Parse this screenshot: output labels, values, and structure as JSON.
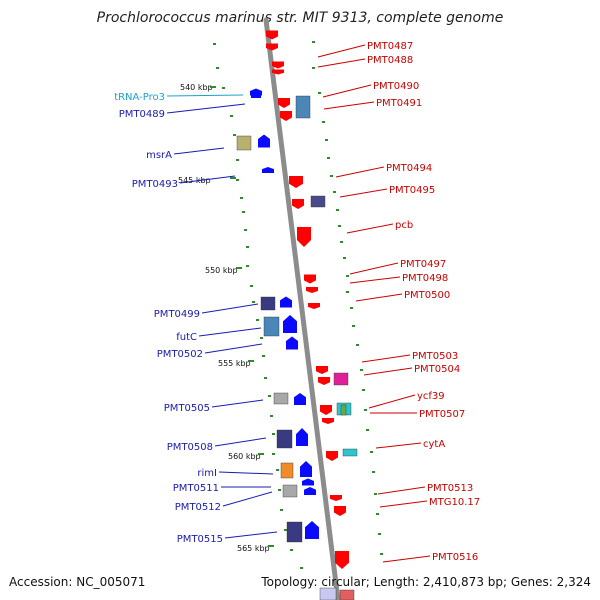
{
  "title": "Prochlorococcus marinus str. MIT 9313, complete genome",
  "footer": {
    "accession": "Accession: NC_005071",
    "summary": "Topology: circular; Length: 2,410,873 bp; Genes: 2,324"
  },
  "colors": {
    "backbone": "#8c8c8c",
    "forward_label": "#1a1ab3",
    "reverse_label": "#cc0000",
    "trna_label": "#1aa3cc",
    "forward_arrow": "#0a0aff",
    "reverse_arrow": "#ff0000",
    "tick": "#2e8b2e"
  },
  "scale_labels": [
    "540 kbp",
    "545 kbp",
    "550 kbp",
    "555 kbp",
    "560 kbp",
    "565 kbp"
  ],
  "features": {
    "forward_genes": [
      "tRNA-Pro3",
      "PMT0489",
      "msrA",
      "PMT0493",
      "PMT0499",
      "futC",
      "PMT0502",
      "PMT0505",
      "PMT0508",
      "rimI",
      "PMT0511",
      "PMT0512",
      "PMT0515"
    ],
    "reverse_genes": [
      "PMT0487",
      "PMT0488",
      "PMT0490",
      "PMT0491",
      "PMT0494",
      "PMT0495",
      "pcb",
      "PMT0497",
      "PMT0498",
      "PMT0500",
      "PMT0503",
      "PMT0504",
      "ycf39",
      "PMT0507",
      "cytA",
      "PMT0513",
      "MTG10.17",
      "PMT0516"
    ]
  }
}
